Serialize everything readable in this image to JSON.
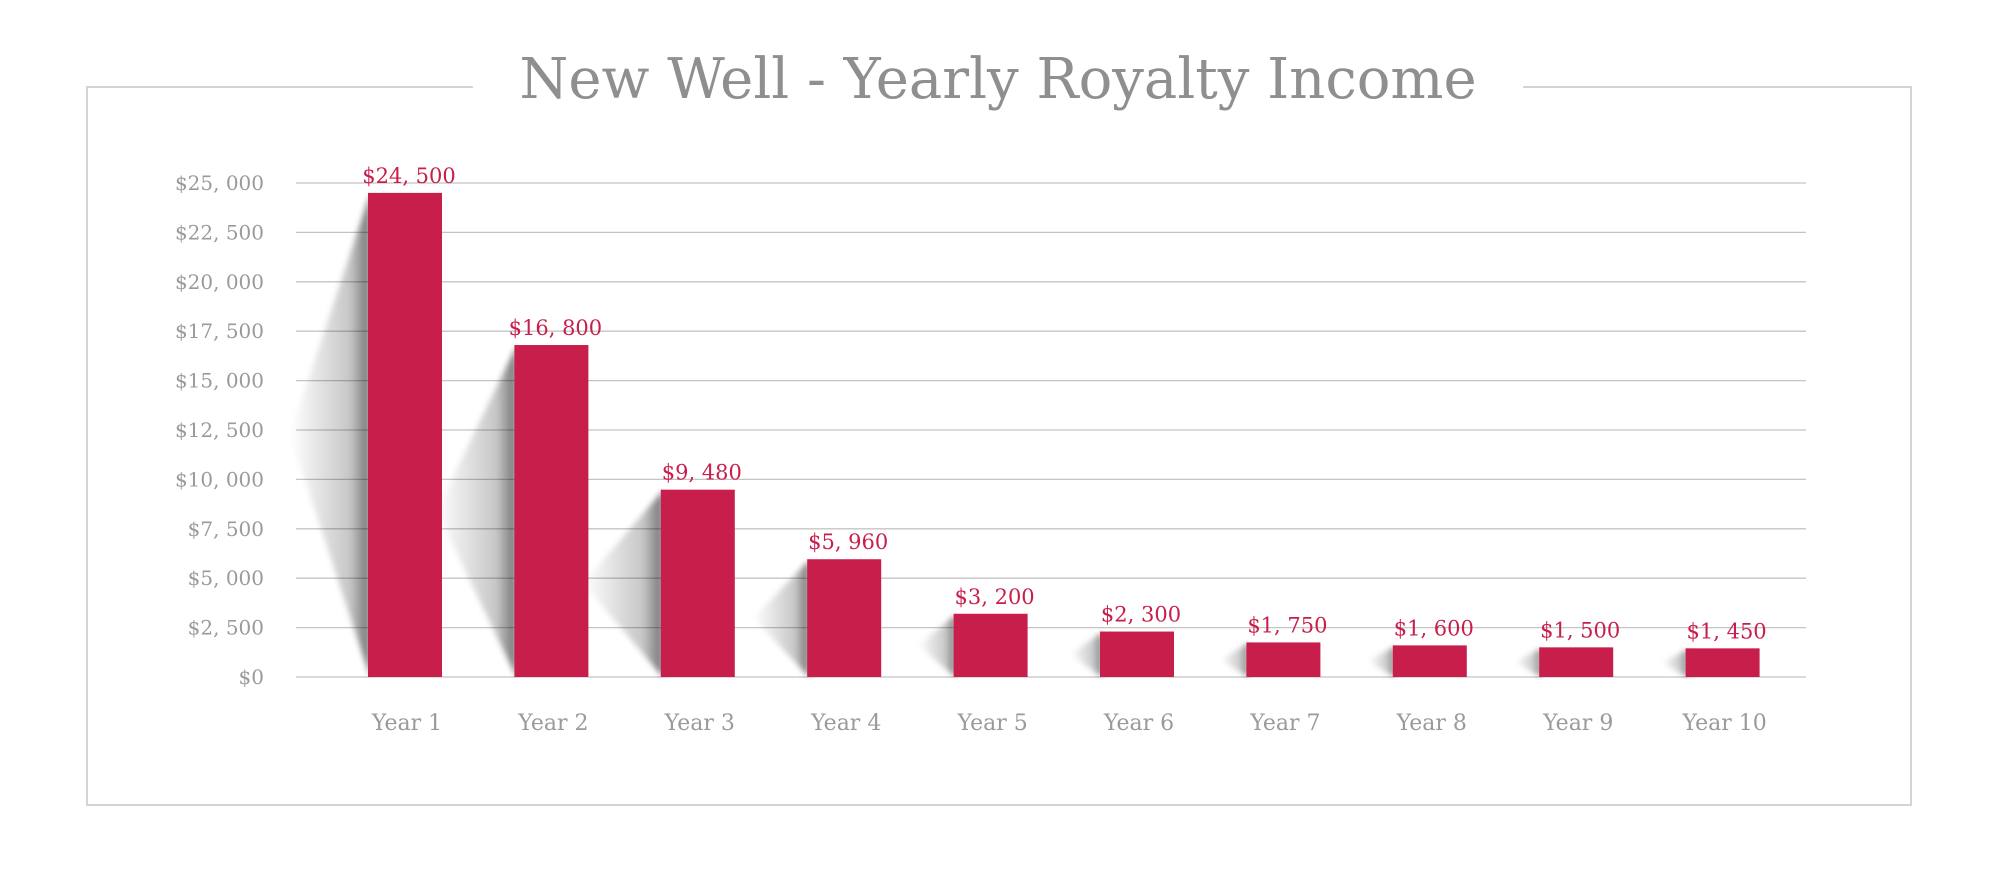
{
  "chart_data": {
    "type": "bar",
    "title": "New Well - Yearly Royalty Income",
    "categories": [
      "Year 1",
      "Year 2",
      "Year 3",
      "Year 4",
      "Year 5",
      "Year 6",
      "Year 7",
      "Year 8",
      "Year 9",
      "Year 10"
    ],
    "values": [
      24500,
      16800,
      9480,
      5960,
      3200,
      2300,
      1750,
      1600,
      1500,
      1450
    ],
    "data_labels": [
      "$24, 500",
      "$16, 800",
      "$9, 480",
      "$5, 960",
      "$3, 200",
      "$2, 300",
      "$1, 750",
      "$1, 600",
      "$1, 500",
      "$1, 450"
    ],
    "y_ticks": [
      0,
      2500,
      5000,
      7500,
      10000,
      12500,
      15000,
      17500,
      20000,
      22500,
      25000
    ],
    "y_tick_labels": [
      "$0",
      "$2, 500",
      "$5, 000",
      "$7, 500",
      "$10, 000",
      "$12, 500",
      "$15, 000",
      "$17, 500",
      "$20, 000",
      "$22, 500",
      "$25, 000"
    ],
    "ylim": [
      0,
      25000
    ],
    "xlabel": "",
    "ylabel": "",
    "grid": true,
    "legend": "none",
    "colors": {
      "bar": "#c81e4b",
      "label": "#c81e4b",
      "grid": "#c4c4c4",
      "axis_text": "#9a9a9a",
      "title": "#8f8f8f",
      "frame": "#d4d4d4"
    }
  }
}
